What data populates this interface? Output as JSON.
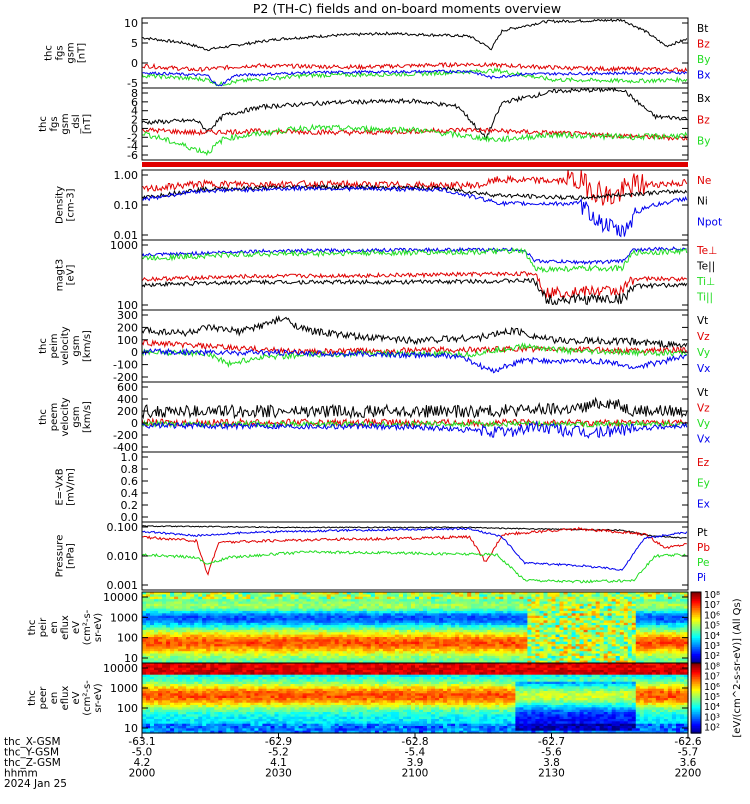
{
  "title": "P2 (TH-C) fields and on-board moments overview",
  "colors": {
    "black": "#000000",
    "red": "#e00000",
    "green": "#22dd22",
    "blue": "#0000ee"
  },
  "chart_data": {
    "type": "line",
    "panels": [
      {
        "id": "fgs",
        "ylabel": [
          "thc",
          "fgs",
          "gsm",
          "[nT]"
        ],
        "yticks": [
          "10",
          "5",
          "0",
          "-5"
        ],
        "legend": [
          {
            "name": "Bt",
            "color": "black"
          },
          {
            "name": "Bz",
            "color": "red"
          },
          {
            "name": "By",
            "color": "green"
          },
          {
            "name": "Bx",
            "color": "blue"
          }
        ]
      },
      {
        "id": "fgs-zoom",
        "ylabel": [
          "thc",
          "fgs",
          "gsm",
          "_dsl",
          "[nT]"
        ],
        "yticks": [
          "8",
          "6",
          "4",
          "2",
          "0",
          "-2",
          "-4",
          "-6"
        ],
        "legend": [
          {
            "name": "Bx",
            "color": "black"
          },
          {
            "name": "Bz",
            "color": "red"
          },
          {
            "name": "By",
            "color": "green"
          }
        ]
      },
      {
        "id": "density",
        "ylabel": [
          "Density",
          "[cm-3]"
        ],
        "yticks": [
          "1.00",
          "0.10",
          "0.01"
        ],
        "legend": [
          {
            "name": "Ne",
            "color": "red"
          },
          {
            "name": "Ni",
            "color": "black"
          },
          {
            "name": "Npot",
            "color": "blue"
          }
        ]
      },
      {
        "id": "temp",
        "ylabel": [
          "magt3",
          "[eV]"
        ],
        "yticks": [
          "1000",
          "100"
        ],
        "legend": [
          {
            "name": "Te⊥",
            "color": "red"
          },
          {
            "name": "Te||",
            "color": "black"
          },
          {
            "name": "Ti⊥",
            "color": "green"
          },
          {
            "name": "Ti||",
            "color": "green"
          }
        ]
      },
      {
        "id": "peim",
        "ylabel": [
          "thc",
          "peim",
          "velocity",
          "gsm",
          "[km/s]"
        ],
        "yticks": [
          "300",
          "200",
          "100",
          "0",
          "-100",
          "-200"
        ],
        "legend": [
          {
            "name": "Vt",
            "color": "black"
          },
          {
            "name": "Vz",
            "color": "red"
          },
          {
            "name": "Vy",
            "color": "green"
          },
          {
            "name": "Vx",
            "color": "blue"
          }
        ]
      },
      {
        "id": "peem",
        "ylabel": [
          "thc",
          "peem",
          "velocity",
          "gsm",
          "[km/s]"
        ],
        "yticks": [
          "600",
          "400",
          "200",
          "0",
          "-200",
          "-400"
        ],
        "legend": [
          {
            "name": "Vt",
            "color": "black"
          },
          {
            "name": "Vz",
            "color": "red"
          },
          {
            "name": "Vy",
            "color": "green"
          },
          {
            "name": "Vx",
            "color": "blue"
          }
        ]
      },
      {
        "id": "efield",
        "ylabel": [
          "E=-VxB",
          "[mV/m]"
        ],
        "yticks": [
          "1.0",
          "0.8",
          "0.6",
          "0.4",
          "0.2",
          "0.0"
        ],
        "legend": [
          {
            "name": "Ez",
            "color": "red"
          },
          {
            "name": "Ey",
            "color": "green"
          },
          {
            "name": "Ex",
            "color": "blue"
          }
        ]
      },
      {
        "id": "pressure",
        "ylabel": [
          "Pressure",
          "[nPa]"
        ],
        "yticks": [
          "0.100",
          "0.010",
          "0.001"
        ],
        "legend": [
          {
            "name": "Pt",
            "color": "black"
          },
          {
            "name": "Pb",
            "color": "red"
          },
          {
            "name": "Pe",
            "color": "green"
          },
          {
            "name": "Pi",
            "color": "blue"
          }
        ]
      },
      {
        "id": "peir",
        "ylabel": [
          "thc",
          "peir",
          "en",
          "eflux",
          "eV",
          "(cm²-s-",
          "sr-eV)"
        ],
        "yticks": [
          "10000",
          "1000",
          "100",
          "10"
        ],
        "legend": []
      },
      {
        "id": "peer",
        "ylabel": [
          "thc",
          "peer",
          "en",
          "eflux",
          "eV",
          "(cm²-s-",
          "sr-eV)"
        ],
        "yticks": [
          "10000",
          "1000",
          "100",
          "10"
        ],
        "legend": []
      }
    ],
    "colorbar": {
      "ticks": [
        "10⁸",
        "10⁷",
        "10⁶",
        "10⁵",
        "10⁴",
        "10³",
        "10²",
        "10⁸",
        "10⁷",
        "10⁶",
        "10⁵",
        "10⁴",
        "10³",
        "10²"
      ],
      "label": "[eV/(cm^2-s-sr-eV)] (All Qs)"
    },
    "xaxis": {
      "row_labels": [
        "thc_X-GSM",
        "thc_Y-GSM",
        "thc_Z-GSM",
        "hhmm",
        "2024 Jan 25"
      ],
      "ticks": [
        {
          "x": "-63.1",
          "y": "-5.0",
          "z": "4.2",
          "hhmm": "2000"
        },
        {
          "x": "-62.9",
          "y": "-5.2",
          "z": "4.1",
          "hhmm": "2030"
        },
        {
          "x": "-62.8",
          "y": "-5.4",
          "z": "3.9",
          "hhmm": "2100"
        },
        {
          "x": "-62.7",
          "y": "-5.6",
          "z": "3.8",
          "hhmm": "2130"
        },
        {
          "x": "-62.6",
          "y": "-5.7",
          "z": "3.6",
          "hhmm": "2200"
        }
      ]
    }
  }
}
